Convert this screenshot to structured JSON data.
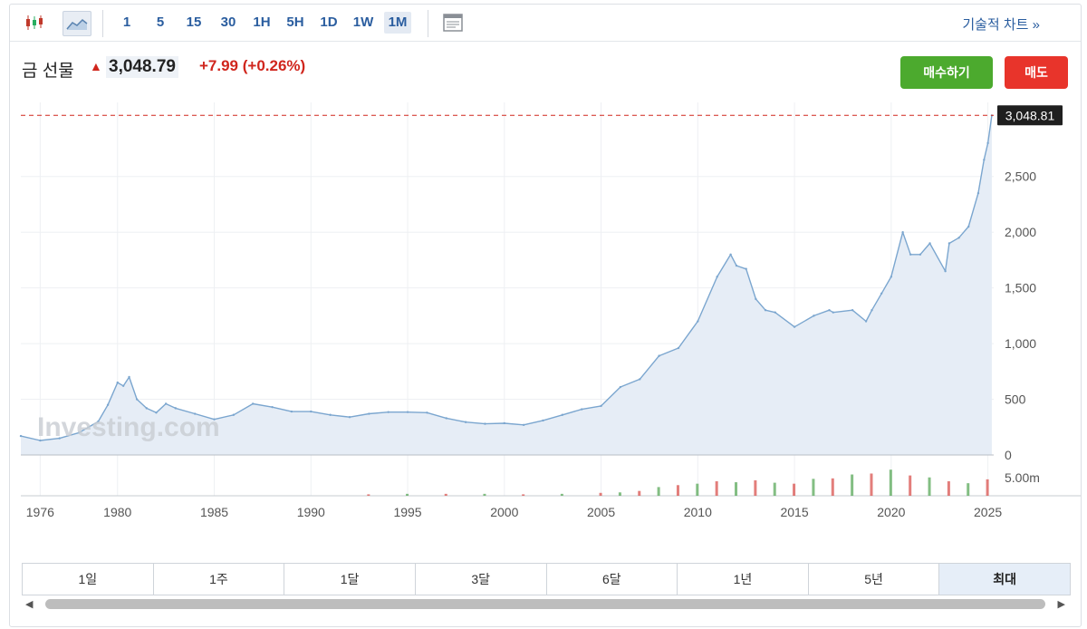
{
  "toolbar": {
    "timeframes": [
      "1",
      "5",
      "15",
      "30",
      "1H",
      "5H",
      "1D",
      "1W",
      "1M"
    ],
    "selected_timeframe": "1M",
    "technical_chart_label": "기술적 차트 »"
  },
  "header": {
    "instrument": "금 선물",
    "price": "3,048.79",
    "change": "+7.99",
    "change_pct": "(+0.26%)",
    "buy_label": "매수하기",
    "sell_label": "매도"
  },
  "watermark": "Investing.com",
  "range_tabs": [
    "1일",
    "1주",
    "1달",
    "3달",
    "6달",
    "1년",
    "5년",
    "최대"
  ],
  "selected_range": "최대",
  "colors": {
    "line": "#7ba6cf",
    "area": "#e6edf6",
    "up": "#d0261d",
    "buy": "#4caa2e",
    "sell": "#e8342b",
    "accent": "#2a5d9f"
  },
  "chart_data": {
    "type": "area",
    "ylim": [
      0,
      3100
    ],
    "y_ticks": [
      0,
      500,
      1000,
      1500,
      2000,
      2500
    ],
    "y_tick_labels": [
      "0",
      "500",
      "1,000",
      "1,500",
      "2,000",
      "2,500"
    ],
    "x_ticks": [
      1976,
      1980,
      1985,
      1990,
      1995,
      2000,
      2005,
      2010,
      2015,
      2020,
      2025
    ],
    "current_price_label": "3,048.81",
    "current_price": 3048.81,
    "volume_label": "5.00m",
    "series": [
      {
        "x": [
          1975,
          1976,
          1977,
          1978,
          1979,
          1979.5,
          1980,
          1980.3,
          1980.6,
          1981,
          1981.5,
          1982,
          1982.5,
          1983,
          1984,
          1985,
          1986,
          1987,
          1988,
          1989,
          1990,
          1991,
          1992,
          1993,
          1994,
          1995,
          1996,
          1997,
          1998,
          1999,
          2000,
          2001,
          2002,
          2003,
          2004,
          2005,
          2006,
          2007,
          2008,
          2009,
          2010,
          2011,
          2011.7,
          2012,
          2012.5,
          2013,
          2013.5,
          2014,
          2015,
          2016,
          2016.8,
          2017,
          2018,
          2018.7,
          2019,
          2019.5,
          2020,
          2020.6,
          2021,
          2021.5,
          2022,
          2022.8,
          2023,
          2023.5,
          2024,
          2024.5,
          2024.8,
          2025,
          2025.2
        ],
        "values": [
          170,
          130,
          150,
          200,
          300,
          450,
          650,
          620,
          700,
          500,
          420,
          380,
          460,
          420,
          370,
          320,
          360,
          460,
          430,
          390,
          390,
          360,
          340,
          370,
          385,
          385,
          380,
          330,
          295,
          280,
          285,
          270,
          310,
          360,
          410,
          440,
          610,
          680,
          890,
          960,
          1200,
          1600,
          1800,
          1700,
          1670,
          1400,
          1300,
          1280,
          1150,
          1250,
          1300,
          1280,
          1300,
          1200,
          1300,
          1450,
          1600,
          2000,
          1800,
          1800,
          1900,
          1650,
          1900,
          1950,
          2050,
          2350,
          2650,
          2800,
          3048
        ]
      }
    ],
    "volume": {
      "x": [
        1993,
        1995,
        1997,
        1999,
        2001,
        2003,
        2005,
        2006,
        2007,
        2008,
        2009,
        2010,
        2011,
        2012,
        2013,
        2014,
        2015,
        2016,
        2017,
        2018,
        2019,
        2020,
        2021,
        2022,
        2023,
        2024,
        2025
      ],
      "values": [
        0.3,
        0.4,
        0.4,
        0.4,
        0.3,
        0.4,
        0.6,
        0.7,
        1.0,
        1.8,
        2.2,
        2.5,
        3.0,
        2.8,
        3.2,
        2.7,
        2.5,
        3.5,
        3.6,
        4.4,
        4.6,
        5.4,
        4.2,
        3.8,
        3.0,
        2.6,
        3.4
      ]
    }
  }
}
